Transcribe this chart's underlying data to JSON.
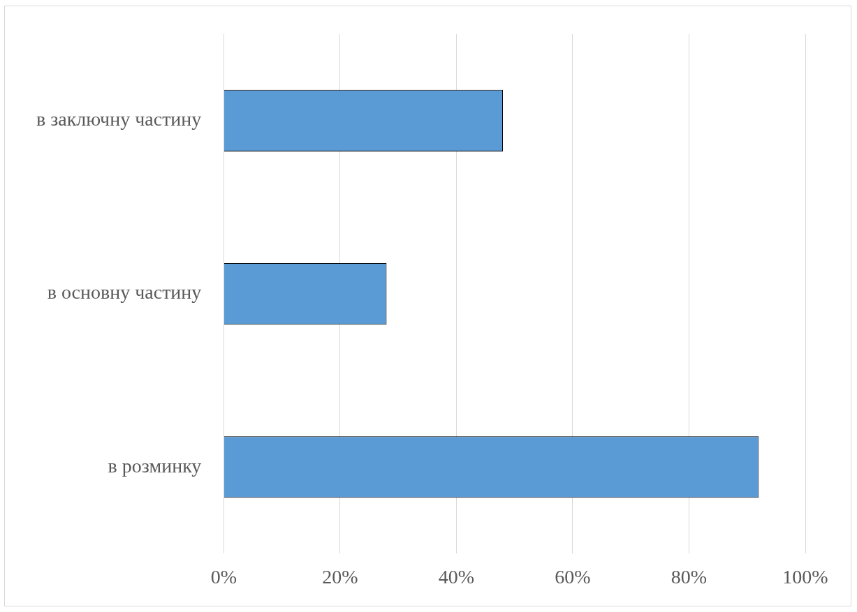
{
  "chart_data": {
    "type": "bar",
    "orientation": "horizontal",
    "categories": [
      "в заключну частину",
      "в основну частину",
      "в розминку"
    ],
    "values": [
      48,
      28,
      92
    ],
    "color": "#5b9bd5",
    "xlim": [
      0,
      100
    ],
    "xticks": [
      {
        "value": 0,
        "label": "0%"
      },
      {
        "value": 20,
        "label": "20%"
      },
      {
        "value": 40,
        "label": "40%"
      },
      {
        "value": 60,
        "label": "60%"
      },
      {
        "value": 80,
        "label": "80%"
      },
      {
        "value": 100,
        "label": "100%"
      }
    ],
    "grid": "x",
    "legend": false
  }
}
